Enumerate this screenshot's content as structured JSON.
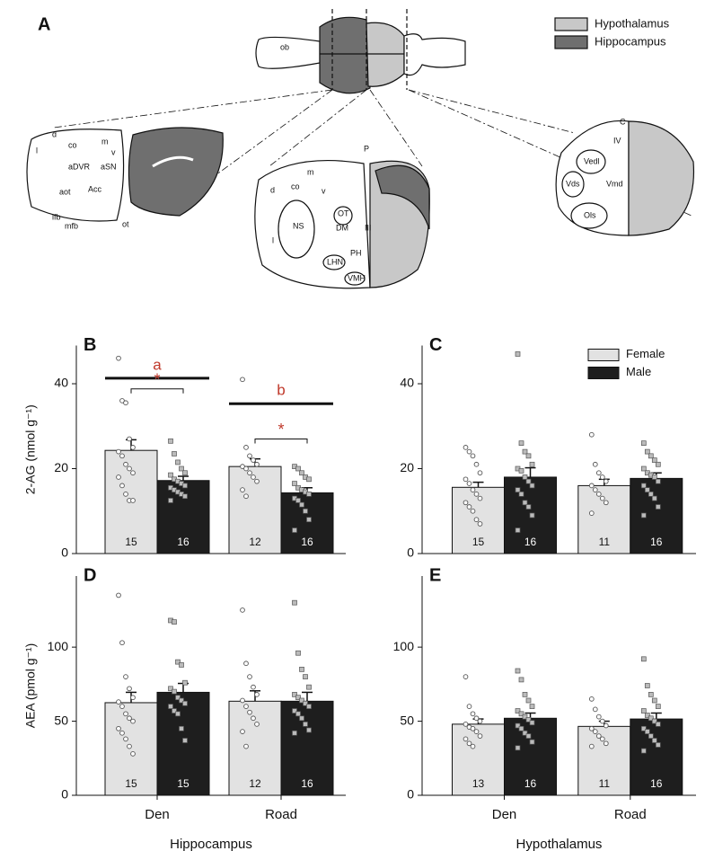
{
  "diagram": {
    "panel": "A",
    "legend": [
      "Hypothalamus",
      "Hippocampus"
    ],
    "top_label": "ob",
    "section_labels": [
      "d",
      "co",
      "m",
      "v",
      "l",
      "aDVR",
      "aSN",
      "Acc",
      "aot",
      "lfb",
      "mfb",
      "ot",
      "P",
      "m",
      "d",
      "co",
      "v",
      "NS",
      "OT",
      "DM",
      "III",
      "l",
      "PH",
      "LHN",
      "VMH",
      "C",
      "IV",
      "Vedl",
      "Vds",
      "Vmd",
      "Ols"
    ]
  },
  "chart_data": [
    {
      "type": "bar",
      "panel": "B",
      "ylabel": "2-AG (nmol g⁻¹)",
      "categories": [
        "Den",
        "Road"
      ],
      "show_categories": false,
      "legend": false,
      "ylim": [
        0,
        49
      ],
      "yticks": [
        0,
        20,
        40
      ],
      "series": [
        {
          "name": "Female",
          "color": "#e2e2e2",
          "values": [
            24.3,
            20.5
          ],
          "errors": [
            2.5,
            1.8
          ],
          "n_labels": [
            15,
            12
          ],
          "points": [
            [
              46,
              36,
              35.5,
              27,
              25,
              24,
              23,
              21,
              20,
              19,
              18,
              16,
              14,
              12.5,
              12.5
            ],
            [
              41,
              25,
              23,
              22,
              21,
              20.5,
              20,
              19,
              18,
              17,
              15,
              13.5
            ]
          ]
        },
        {
          "name": "Male",
          "color": "#1e1e1e",
          "values": [
            17.2,
            14.3
          ],
          "errors": [
            1,
            1.2
          ],
          "n_labels": [
            16,
            16
          ],
          "points": [
            [
              26.5,
              23.5,
              21.5,
              20,
              19,
              18.5,
              17.5,
              17,
              16.5,
              16,
              15.5,
              15,
              14.5,
              14,
              13.5,
              12.5
            ],
            [
              20.5,
              20,
              19,
              18,
              17.5,
              16.5,
              15.5,
              15,
              14.5,
              14,
              13,
              12.5,
              11.5,
              10,
              8,
              5.5
            ]
          ]
        }
      ],
      "annotations": [
        {
          "text": "a",
          "category": 0,
          "style": "line",
          "level": 41.3
        },
        {
          "text": "*",
          "category": 0,
          "style": "bracket",
          "level": 38.8
        },
        {
          "text": "b",
          "category": 1,
          "style": "line",
          "level": 35.3
        },
        {
          "text": "*",
          "category": 1,
          "style": "bracket",
          "level": 27
        }
      ]
    },
    {
      "type": "bar",
      "panel": "C",
      "categories": [
        "Den",
        "Road"
      ],
      "show_categories": false,
      "legend": true,
      "ylim": [
        0,
        49
      ],
      "yticks": [
        0,
        20,
        40
      ],
      "series": [
        {
          "name": "Female",
          "color": "#e2e2e2",
          "values": [
            15.6,
            16
          ],
          "errors": [
            1.2,
            1.5
          ],
          "n_labels": [
            15,
            11
          ],
          "points": [
            [
              25,
              24,
              23,
              21,
              19,
              17.5,
              16.5,
              15,
              14,
              13,
              12,
              11,
              10,
              8,
              7
            ],
            [
              28,
              21,
              19,
              18,
              17,
              16,
              15,
              14,
              13,
              12,
              9.5
            ]
          ]
        },
        {
          "name": "Male",
          "color": "#1e1e1e",
          "values": [
            18,
            17.7
          ],
          "errors": [
            2.2,
            1.3
          ],
          "n_labels": [
            16,
            16
          ],
          "points": [
            [
              47,
              26,
              24,
              23,
              21,
              20,
              19.5,
              18,
              17,
              16,
              15,
              14,
              12,
              11,
              9,
              5.5
            ],
            [
              26,
              24,
              23,
              22,
              21,
              20,
              19,
              18.5,
              18,
              17,
              16,
              15,
              14,
              13,
              11,
              9
            ]
          ]
        }
      ]
    },
    {
      "type": "bar",
      "panel": "D",
      "ylabel": "AEA (pmol g⁻¹)",
      "xlabel": "Hippocampus",
      "categories": [
        "Den",
        "Road"
      ],
      "show_categories": true,
      "legend": false,
      "ylim": [
        0,
        148
      ],
      "yticks": [
        0,
        50,
        100
      ],
      "series": [
        {
          "name": "Female",
          "color": "#e2e2e2",
          "values": [
            62.5,
            63.5
          ],
          "errors": [
            7,
            7
          ],
          "n_labels": [
            15,
            12
          ],
          "points": [
            [
              135,
              103,
              80,
              72,
              66,
              63,
              60,
              55,
              52,
              50,
              45,
              42,
              38,
              33,
              28
            ],
            [
              125,
              89,
              80,
              73,
              68,
              64,
              60,
              56,
              52,
              48,
              43,
              33
            ]
          ]
        },
        {
          "name": "Male",
          "color": "#1e1e1e",
          "values": [
            69.5,
            63.5
          ],
          "errors": [
            6,
            6
          ],
          "n_labels": [
            15,
            16
          ],
          "points": [
            [
              118,
              117,
              90,
              88,
              76,
              72,
              70,
              66,
              64,
              62,
              60,
              57,
              55,
              45,
              37
            ],
            [
              130,
              96,
              85,
              80,
              73,
              68,
              66,
              64,
              62,
              60,
              57,
              55,
              52,
              48,
              44,
              42
            ]
          ]
        }
      ]
    },
    {
      "type": "bar",
      "panel": "E",
      "xlabel": "Hypothalamus",
      "categories": [
        "Den",
        "Road"
      ],
      "show_categories": true,
      "legend": false,
      "ylim": [
        0,
        148
      ],
      "yticks": [
        0,
        50,
        100
      ],
      "series": [
        {
          "name": "Female",
          "color": "#e2e2e2",
          "values": [
            48,
            46.5
          ],
          "errors": [
            3.5,
            3.5
          ],
          "n_labels": [
            13,
            11
          ],
          "points": [
            [
              80,
              60,
              55,
              52,
              50,
              48,
              46,
              45,
              43,
              40,
              38,
              35,
              33
            ],
            [
              65,
              58,
              53,
              50,
              47,
              45,
              43,
              40,
              38,
              35,
              33
            ]
          ]
        },
        {
          "name": "Male",
          "color": "#1e1e1e",
          "values": [
            52,
            51.5
          ],
          "errors": [
            3.5,
            4
          ],
          "n_labels": [
            16,
            16
          ],
          "points": [
            [
              84,
              78,
              68,
              64,
              60,
              57,
              55,
              53,
              51,
              49,
              47,
              45,
              42,
              40,
              36,
              32
            ],
            [
              92,
              74,
              68,
              64,
              60,
              57,
              54,
              52,
              50,
              48,
              45,
              43,
              40,
              37,
              34,
              30
            ]
          ]
        }
      ]
    }
  ]
}
